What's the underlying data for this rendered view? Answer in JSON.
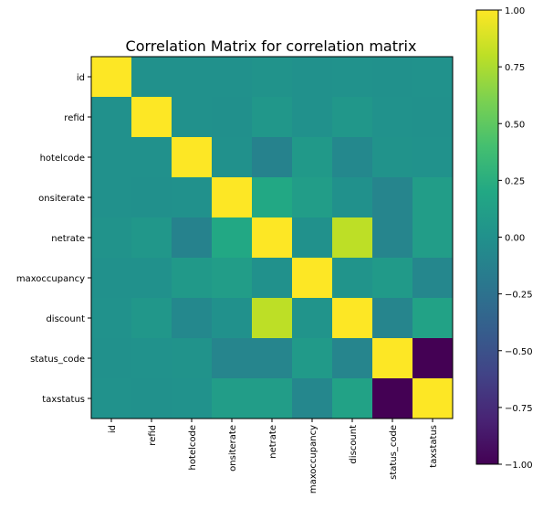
{
  "chart_data": {
    "type": "heatmap",
    "title": "Correlation Matrix for correlation matrix",
    "labels": [
      "id",
      "refid",
      "hotelcode",
      "onsiterate",
      "netrate",
      "maxoccupancy",
      "discount",
      "status_code",
      "taxstatus"
    ],
    "matrix": [
      [
        1.0,
        0.0,
        0.0,
        0.0,
        0.02,
        0.0,
        0.01,
        0.0,
        0.01
      ],
      [
        0.0,
        1.0,
        0.0,
        -0.01,
        0.05,
        0.0,
        0.05,
        0.01,
        0.0
      ],
      [
        0.0,
        0.0,
        1.0,
        0.0,
        -0.12,
        0.07,
        -0.07,
        0.02,
        0.01
      ],
      [
        0.0,
        -0.01,
        0.0,
        1.0,
        0.2,
        0.1,
        0.0,
        -0.1,
        0.1
      ],
      [
        0.02,
        0.05,
        -0.12,
        0.2,
        1.0,
        0.0,
        0.8,
        -0.1,
        0.1
      ],
      [
        0.0,
        0.0,
        0.07,
        0.1,
        0.0,
        1.0,
        0.03,
        0.08,
        -0.08
      ],
      [
        0.01,
        0.05,
        -0.07,
        0.0,
        0.8,
        0.03,
        1.0,
        -0.1,
        0.15
      ],
      [
        0.0,
        0.01,
        0.02,
        -0.1,
        -0.1,
        0.08,
        -0.1,
        1.0,
        -1.0
      ],
      [
        0.01,
        0.0,
        0.01,
        0.1,
        0.1,
        -0.08,
        0.15,
        -1.0,
        1.0
      ]
    ],
    "colorbar": {
      "range": [
        -1.0,
        1.0
      ],
      "ticks": [
        "1.00",
        "0.75",
        "0.50",
        "0.25",
        "0.00",
        "−0.25",
        "−0.50",
        "−0.75",
        "−1.00"
      ],
      "tick_values": [
        1.0,
        0.75,
        0.5,
        0.25,
        0.0,
        -0.25,
        -0.5,
        -0.75,
        -1.0
      ]
    },
    "colormap": "viridis"
  }
}
